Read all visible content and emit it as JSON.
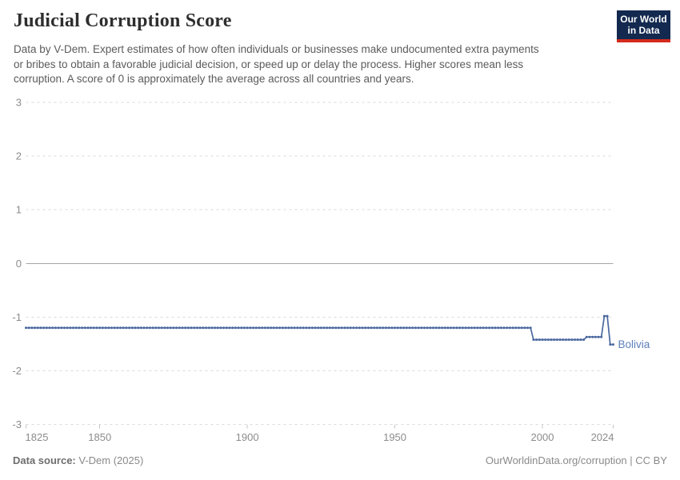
{
  "header": {
    "title": "Judicial Corruption Score",
    "subtitle_lines": [
      "Data by V-Dem. Expert estimates of how often individuals or businesses make undocumented extra payments",
      "or bribes to obtain a favorable judicial decision, or speed up or delay the process. Higher scores mean less",
      "corruption. A score of 0 is approximately the average across all countries and years."
    ],
    "logo": {
      "line1": "Our World",
      "line2": "in Data"
    }
  },
  "footer": {
    "source_label": "Data source:",
    "source_value": "V-Dem (2025)",
    "credit": "OurWorldinData.org/corruption | CC BY"
  },
  "colors": {
    "line": "#4a689f",
    "entity_label": "#5d7fba",
    "grid": "#dadada",
    "zero_line": "#a6a6a6",
    "tick_mark": "#c4c4c4",
    "axis_text": "#8c8c8c",
    "logo_bg": "#13294f",
    "logo_stripe": "#d42a1d"
  },
  "chart_data": {
    "type": "line",
    "title": "Judicial Corruption Score",
    "xlabel": "",
    "ylabel": "",
    "x_range": [
      1825,
      2024
    ],
    "ylim": [
      -3,
      3
    ],
    "y_ticks": [
      3,
      2,
      1,
      0,
      -1,
      -2,
      -3
    ],
    "x_ticks": [
      1825,
      1850,
      1900,
      1950,
      2000,
      2024
    ],
    "grid": "horizontal-dashed",
    "markers": "point-per-year",
    "legend_position": "end-of-line-label",
    "series": [
      {
        "name": "Bolivia",
        "segments": [
          {
            "from": 1825,
            "to": 1996,
            "value": -1.2
          },
          {
            "from": 1997,
            "to": 2014,
            "value": -1.42
          },
          {
            "from": 2015,
            "to": 2020,
            "value": -1.37
          },
          {
            "from": 2021,
            "to": 2022,
            "value": -0.98
          },
          {
            "from": 2023,
            "to": 2024,
            "value": -1.51
          }
        ]
      }
    ]
  }
}
